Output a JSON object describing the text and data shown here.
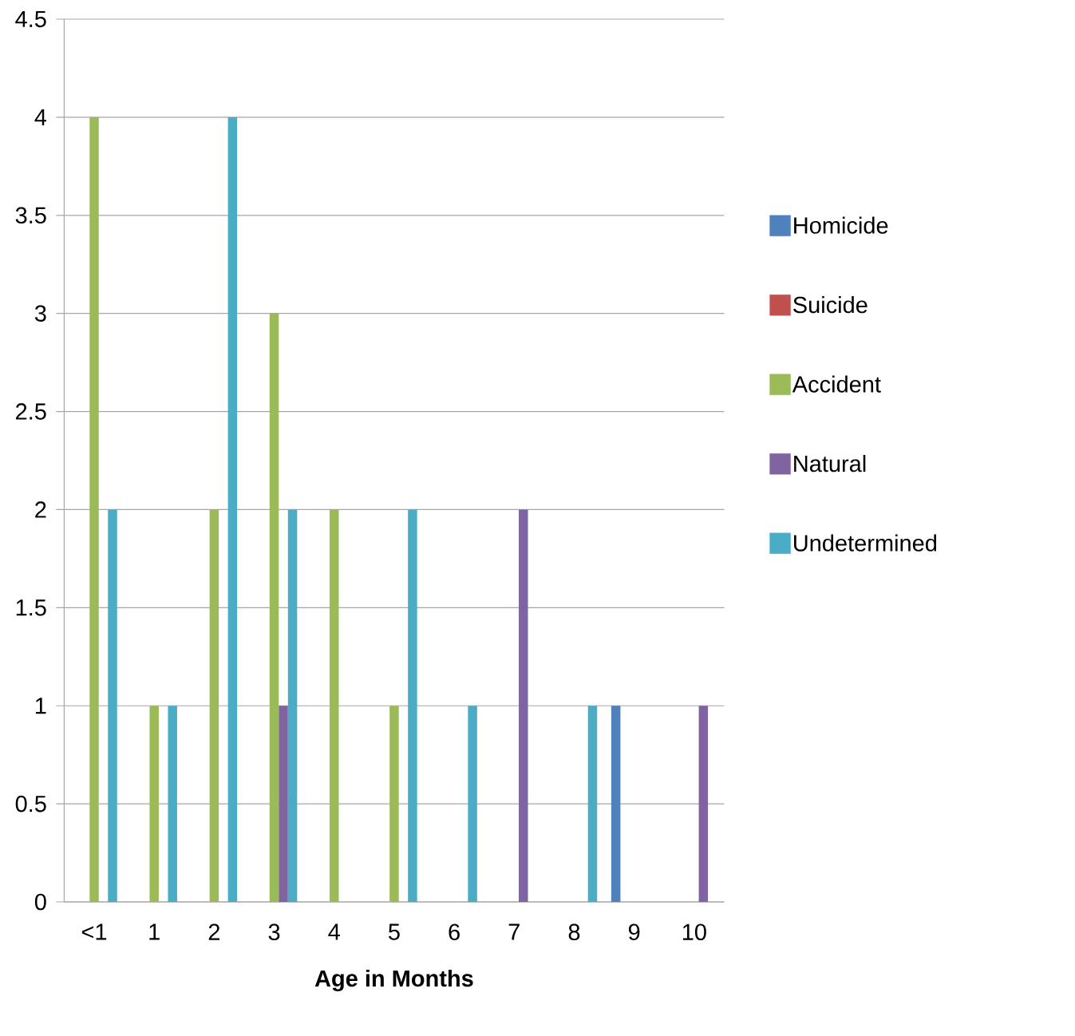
{
  "chart_data": {
    "type": "bar",
    "xlabel": "Age in Months",
    "categories": [
      "<1",
      "1",
      "2",
      "3",
      "4",
      "5",
      "6",
      "7",
      "8",
      "9",
      "10"
    ],
    "series": [
      {
        "name": "Homicide",
        "color": "#4f81bd",
        "values": [
          null,
          null,
          null,
          null,
          null,
          null,
          null,
          null,
          null,
          1,
          null
        ]
      },
      {
        "name": "Suicide",
        "color": "#c0504d",
        "values": [
          null,
          null,
          null,
          null,
          null,
          null,
          null,
          null,
          null,
          null,
          null
        ]
      },
      {
        "name": "Accident",
        "color": "#9bbb59",
        "values": [
          4,
          1,
          2,
          3,
          2,
          1,
          null,
          null,
          null,
          null,
          null
        ]
      },
      {
        "name": "Natural",
        "color": "#8064a2",
        "values": [
          null,
          null,
          null,
          1,
          null,
          null,
          null,
          2,
          null,
          null,
          1
        ]
      },
      {
        "name": "Undetermined",
        "color": "#4bacc6",
        "values": [
          2,
          1,
          4,
          2,
          null,
          2,
          1,
          null,
          1,
          null,
          null
        ]
      }
    ],
    "ylim": [
      0,
      4.5
    ],
    "yticks": [
      0,
      0.5,
      1,
      1.5,
      2,
      2.5,
      3,
      3.5,
      4,
      4.5
    ],
    "grid": "y",
    "legend": "right"
  }
}
